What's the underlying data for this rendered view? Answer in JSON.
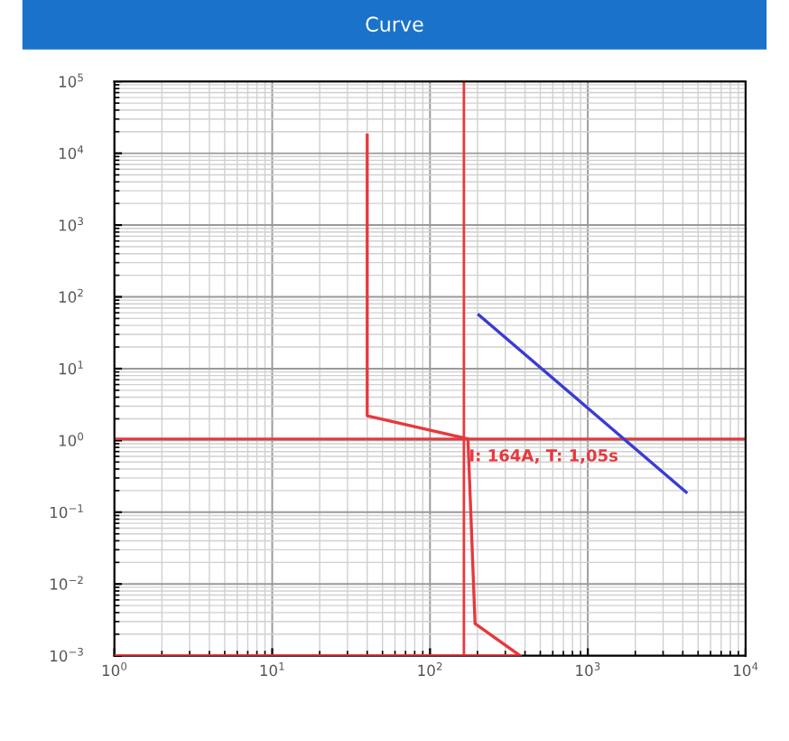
{
  "chart_data": {
    "type": "line",
    "title": "Curve",
    "log": "xy",
    "grid": true,
    "legend": false,
    "marker": "none",
    "line_style": "solid",
    "xlim": [
      1,
      10000
    ],
    "ylim": [
      0.001,
      100000
    ],
    "xticks": [
      {
        "value": 1,
        "label": "10$^{0}$"
      },
      {
        "value": 10,
        "label": "10$^{1}$"
      },
      {
        "value": 100,
        "label": "10$^{2}$"
      },
      {
        "value": 1000,
        "label": "10$^{3}$"
      },
      {
        "value": 10000,
        "label": "10$^{4}$"
      }
    ],
    "yticks": [
      {
        "value": 0.001,
        "label": "10$^{−3}$"
      },
      {
        "value": 0.01,
        "label": "10$^{−2}$"
      },
      {
        "value": 0.1,
        "label": "10$^{−1}$"
      },
      {
        "value": 1,
        "label": "10$^{0}$"
      },
      {
        "value": 10,
        "label": "10$^{1}$"
      },
      {
        "value": 100,
        "label": "10$^{2}$"
      },
      {
        "value": 1000,
        "label": "10$^{3}$"
      },
      {
        "value": 10000,
        "label": "10$^{4}$"
      },
      {
        "value": 100000,
        "label": "10$^{5}$"
      }
    ],
    "series": [
      {
        "color": "#e8383d",
        "x": [
          40,
          40,
          174,
          193,
          373,
          1
        ],
        "values": [
          18000,
          2.2,
          1.05,
          0.0028,
          0.001,
          0.001
        ]
      },
      {
        "color": "#3b3bd4",
        "x": [
          204,
          4200
        ],
        "values": [
          56,
          0.19
        ]
      }
    ],
    "ref_lines": [
      {
        "axis": "x",
        "value": 164,
        "color": "#e8383d"
      },
      {
        "axis": "y",
        "value": 1.05,
        "color": "#e8383d"
      }
    ],
    "annotations": [
      {
        "text": "I: 164A, T: 1,05s",
        "x": 164,
        "y": 1.05
      }
    ]
  }
}
